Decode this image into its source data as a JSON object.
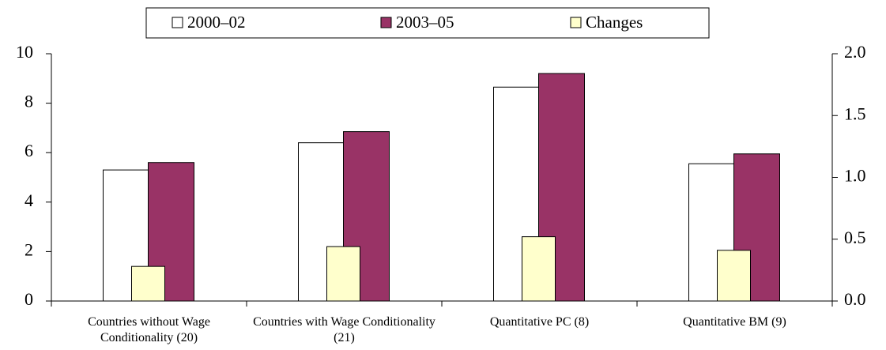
{
  "chart_data": {
    "type": "bar",
    "categories": [
      "Countries without Wage Conditionality (20)",
      "Countries with Wage Conditionality (21)",
      "Quantitative PC (8)",
      "Quantitative BM (9)"
    ],
    "series": [
      {
        "name": "2000–02",
        "color": "#ffffff",
        "values": [
          5.3,
          6.4,
          8.65,
          5.55
        ]
      },
      {
        "name": "2003–05",
        "color": "#993366",
        "values": [
          5.6,
          6.85,
          9.2,
          5.95
        ]
      },
      {
        "name": "Changes",
        "color": "#ffffcc",
        "axis": "y2",
        "values": [
          0.28,
          0.44,
          0.52,
          0.41
        ]
      }
    ],
    "ylim": [
      0,
      10
    ],
    "yticks": [
      0,
      2,
      4,
      6,
      8,
      10
    ],
    "y2lim": [
      0,
      2
    ],
    "y2ticks": [
      {
        "value": 0,
        "label": "0.0"
      },
      {
        "value": 0.5,
        "label": "0.5"
      },
      {
        "value": 1,
        "label": "1.0"
      },
      {
        "value": 1.5,
        "label": "1.5"
      },
      {
        "value": 2,
        "label": "2.0"
      }
    ],
    "legend": "top"
  }
}
